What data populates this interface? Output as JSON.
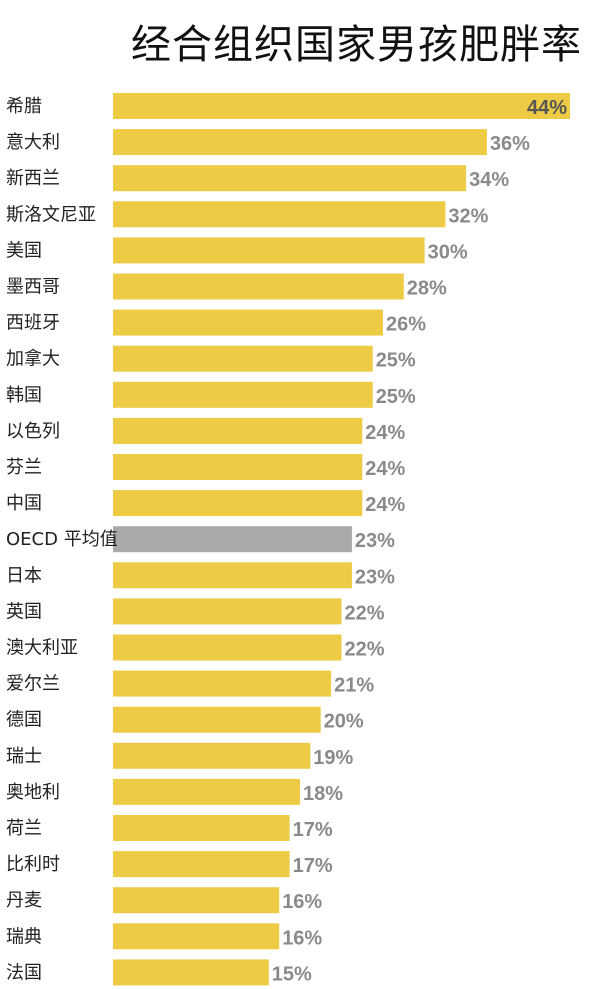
{
  "chart_data": {
    "type": "bar",
    "orientation": "horizontal",
    "title": "经合组织国家男孩肥胖率",
    "xlabel": "",
    "ylabel": "",
    "xlim": [
      0,
      44
    ],
    "grid": false,
    "legend": "none",
    "categories": [
      "希腊",
      "意大利",
      "新西兰",
      "斯洛文尼亚",
      "美国",
      "墨西哥",
      "西班牙",
      "加拿大",
      "韩国",
      "以色列",
      "芬兰",
      "中国",
      "OECD 平均值",
      "日本",
      "英国",
      "澳大利亚",
      "爱尔兰",
      "德国",
      "瑞士",
      "奥地利",
      "荷兰",
      "比利时",
      "丹麦",
      "瑞典",
      "法国"
    ],
    "values": [
      44,
      36,
      34,
      32,
      30,
      28,
      26,
      25,
      25,
      24,
      24,
      24,
      23,
      23,
      22,
      22,
      21,
      20,
      19,
      18,
      17,
      17,
      16,
      16,
      15
    ],
    "value_labels": [
      "44%",
      "36%",
      "34%",
      "32%",
      "30%",
      "28%",
      "26%",
      "25%",
      "25%",
      "24%",
      "24%",
      "24%",
      "23%",
      "23%",
      "22%",
      "22%",
      "21%",
      "20%",
      "19%",
      "18%",
      "17%",
      "17%",
      "16%",
      "16%",
      "15%"
    ],
    "highlight_category": "OECD 平均值",
    "colors": {
      "bar": "#EDCB45",
      "highlight": "#A9A9A9",
      "value_text": "#8A8A8A",
      "value_text_inside": "#555555"
    }
  }
}
